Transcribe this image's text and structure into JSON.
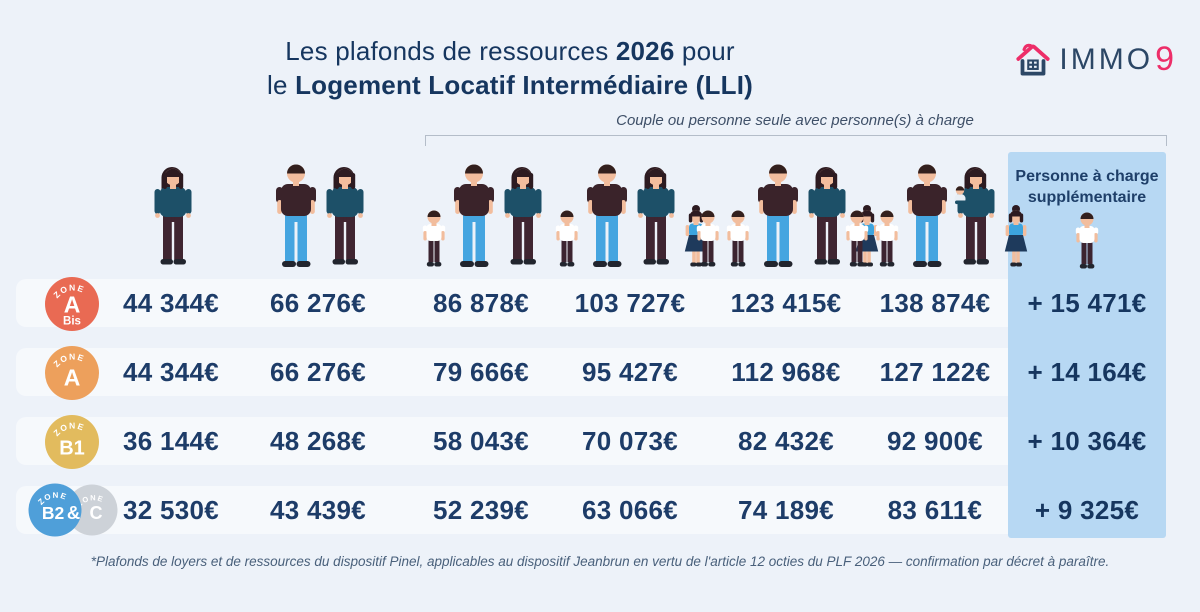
{
  "title": {
    "line1_pre": "Les plafonds de ressources ",
    "line1_bold": "2026",
    "line1_post": " pour",
    "line2_pre": "le ",
    "line2_bold": "Logement Locatif Intermédiaire (LLI)"
  },
  "logo": {
    "text": "IMMO",
    "accent": "9",
    "navy": "#2c4766",
    "pink": "#ed2e69"
  },
  "header": {
    "bracket_label": "Couple ou personne seule avec personne(s) à charge",
    "supplement_title": "Personne à charge supplémentaire",
    "supplement_icon": "child",
    "columns": [
      {
        "id": "single-person",
        "household": [
          "woman"
        ]
      },
      {
        "id": "couple",
        "household": [
          "man",
          "woman"
        ]
      },
      {
        "id": "couple-1-child",
        "household": [
          "boy",
          "man",
          "woman"
        ]
      },
      {
        "id": "couple-2-children",
        "household": [
          "boy",
          "man",
          "woman",
          "girl"
        ]
      },
      {
        "id": "couple-3-children",
        "household": [
          "boy",
          "boy",
          "man",
          "woman",
          "girl"
        ]
      },
      {
        "id": "couple-4-children",
        "household": [
          "boy",
          "boy",
          "man",
          "woman_baby",
          "girl"
        ]
      }
    ]
  },
  "zones": [
    {
      "name": "zone-a-bis",
      "arc": "ZONE",
      "main": "A",
      "sub": "Bis",
      "color": "#e96a53"
    },
    {
      "name": "zone-a",
      "arc": "ZONE",
      "main": "A",
      "sub": "",
      "color": "#eda05c"
    },
    {
      "name": "zone-b1",
      "arc": "ZONE",
      "main": "B1",
      "sub": "",
      "color": "#e2bb5e"
    },
    {
      "name": "zone-b2-c",
      "type": "double",
      "arc": "ZONE",
      "left_main": "B2",
      "amp": "&",
      "right_main": "C",
      "left_color": "#4f9fd9",
      "right_color": "#cdd2d8"
    }
  ],
  "table": {
    "rows": [
      {
        "zone": "A Bis",
        "values": [
          "44 344€",
          "66 276€",
          "86 878€",
          "103 727€",
          "123 415€",
          "138 874€"
        ],
        "supplement": "+ 15 471€"
      },
      {
        "zone": "A",
        "values": [
          "44 344€",
          "66 276€",
          "79 666€",
          "95 427€",
          "112 968€",
          "127 122€"
        ],
        "supplement": "+ 14 164€"
      },
      {
        "zone": "B1",
        "values": [
          "36 144€",
          "48 268€",
          "58 043€",
          "70 073€",
          "82 432€",
          "92 900€"
        ],
        "supplement": "+ 10 364€"
      },
      {
        "zone": "B2&C",
        "values": [
          "32 530€",
          "43 439€",
          "52 239€",
          "63 066€",
          "74 189€",
          "83 611€"
        ],
        "supplement": "+ 9 325€"
      }
    ]
  },
  "chart_data": {
    "type": "table",
    "title": "Les plafonds de ressources 2026 pour le Logement Locatif Intermédiaire (LLI)",
    "column_headers": [
      "Personne seule",
      "Couple",
      "Couple ou personne seule avec 1 personne à charge",
      "avec 2 personnes à charge",
      "avec 3 personnes à charge",
      "avec 4 personnes à charge",
      "Personne à charge supplémentaire"
    ],
    "row_headers": [
      "Zone A Bis",
      "Zone A",
      "Zone B1",
      "Zone B2 & C"
    ],
    "values": [
      [
        44344,
        66276,
        86878,
        103727,
        123415,
        138874,
        15471
      ],
      [
        44344,
        66276,
        79666,
        95427,
        112968,
        127122,
        14164
      ],
      [
        36144,
        48268,
        58043,
        70073,
        82432,
        92900,
        10364
      ],
      [
        32530,
        43439,
        52239,
        63066,
        74189,
        83611,
        9325
      ]
    ],
    "unit": "€"
  },
  "colors": {
    "background": "#edf2f9",
    "text_navy": "#1d3c68",
    "supplement_panel": "#b7d8f3",
    "zone_a_bis": "#e96a53",
    "zone_a": "#eda05c",
    "zone_b1": "#e2bb5e",
    "zone_b2": "#4f9fd9",
    "zone_c": "#cdd2d8",
    "logo_pink": "#ed2e69"
  },
  "footnote": "*Plafonds de loyers et de ressources du dispositif Pinel, applicables au dispositif Jeanbrun en vertu de l'article 12 octies du PLF 2026 — confirmation par décret à paraître."
}
